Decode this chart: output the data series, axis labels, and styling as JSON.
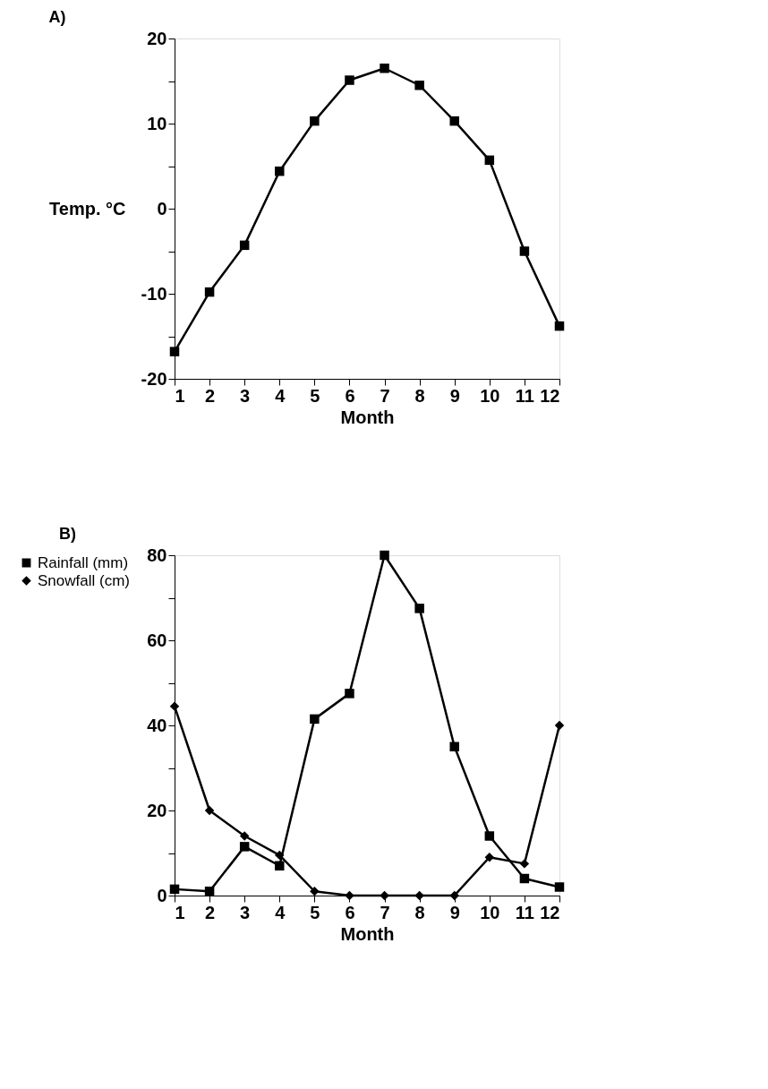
{
  "chart_data": [
    {
      "type": "line",
      "title": "A)",
      "xlabel": "Month",
      "ylabel": "Temp. °C",
      "x": [
        1,
        2,
        3,
        4,
        5,
        6,
        7,
        8,
        9,
        10,
        11,
        12
      ],
      "series": [
        {
          "color": "#000000",
          "marker": "square",
          "values": [
            -16.8,
            -9.8,
            -4.3,
            4.4,
            10.3,
            15.1,
            16.5,
            14.5,
            10.3,
            5.7,
            -5,
            -13.8
          ]
        }
      ],
      "xlim": [
        1,
        12
      ],
      "xticks": [
        1,
        2,
        3,
        4,
        5,
        6,
        7,
        8,
        9,
        10,
        11,
        12
      ],
      "ylim": [
        -20,
        20
      ],
      "yticks": [
        -20,
        {
          "value": -15,
          "label": null
        },
        -10,
        {
          "value": -5,
          "label": null
        },
        0,
        {
          "value": 5,
          "label": null
        },
        10,
        {
          "value": 15,
          "label": null
        },
        20
      ],
      "grid": false,
      "line_style": "solid"
    },
    {
      "type": "line",
      "title": "B)",
      "xlabel": "Month",
      "x": [
        1,
        2,
        3,
        4,
        5,
        6,
        7,
        8,
        9,
        10,
        11,
        12
      ],
      "series": [
        {
          "name": "Rainfall (mm)",
          "color": "#000000",
          "marker": "square",
          "values": [
            1.5,
            1,
            11.5,
            7,
            41.5,
            47.5,
            80,
            67.5,
            35,
            14,
            4,
            2
          ]
        },
        {
          "name": "Snowfall (cm)",
          "color": "#000000",
          "marker": "diamond",
          "values": [
            44.5,
            20,
            14,
            9.5,
            1,
            0,
            0,
            0,
            0,
            9,
            7.5,
            40
          ]
        }
      ],
      "xlim": [
        1,
        12
      ],
      "xticks": [
        1,
        2,
        3,
        4,
        5,
        6,
        7,
        8,
        9,
        10,
        11,
        12
      ],
      "ylim": [
        0,
        80
      ],
      "yticks": [
        0,
        {
          "value": 10,
          "label": null
        },
        20,
        {
          "value": 30,
          "label": null
        },
        40,
        {
          "value": 50,
          "label": null
        },
        60,
        {
          "value": 70,
          "label": null
        },
        80
      ],
      "grid": false,
      "legend": "left",
      "line_style": "solid"
    }
  ]
}
